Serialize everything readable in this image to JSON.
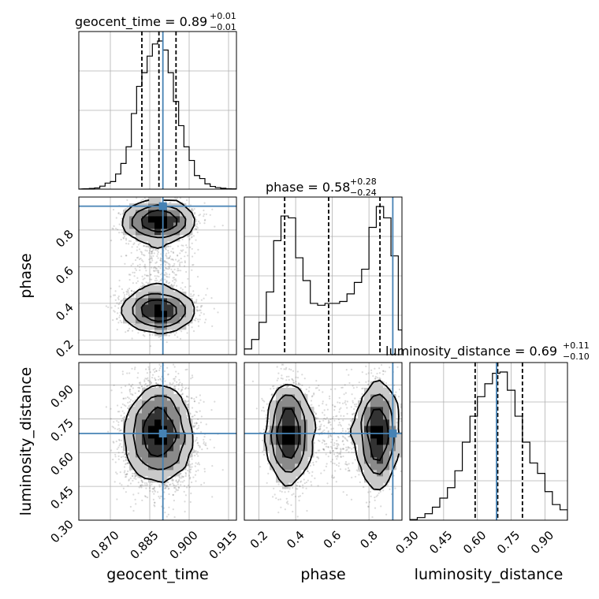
{
  "chart_data": {
    "type": "corner",
    "parameters": [
      "geocent_time",
      "phase",
      "luminosity_distance"
    ],
    "truths": {
      "geocent_time": 0.89,
      "phase": 0.93,
      "luminosity_distance": 0.685
    },
    "truth_color": "#4682b4",
    "line_color": "#000000",
    "grid": true,
    "ranges": {
      "geocent_time": [
        0.858,
        0.918
      ],
      "phase": [
        0.12,
        0.98
      ],
      "luminosity_distance": [
        0.3,
        1.0
      ]
    },
    "ticks": {
      "geocent_time": {
        "values": [
          0.87,
          0.885,
          0.9,
          0.915
        ],
        "labels": [
          "0.870",
          "0.885",
          "0.900",
          "0.915"
        ]
      },
      "phase": {
        "values": [
          0.2,
          0.4,
          0.6,
          0.8
        ],
        "labels": [
          "0.2",
          "0.4",
          "0.6",
          "0.8"
        ]
      },
      "luminosity_distance": {
        "values": [
          0.3,
          0.45,
          0.6,
          0.75,
          0.9
        ],
        "labels": [
          "0.30",
          "0.45",
          "0.60",
          "0.75",
          "0.90"
        ]
      }
    },
    "titles": [
      {
        "param": "geocent_time",
        "text": "geocent_time = 0.89",
        "sup": "+0.01",
        "sub": "−0.01"
      },
      {
        "param": "phase",
        "text": "phase = 0.58",
        "sup": "+0.28",
        "sub": "−0.24"
      },
      {
        "param": "luminosity_distance",
        "text": "luminosity_distance = 0.69",
        "sup": "+0.11",
        "sub": "−0.10"
      }
    ],
    "quantiles": {
      "geocent_time": [
        0.882,
        0.8885,
        0.895
      ],
      "phase": [
        0.34,
        0.58,
        0.86
      ],
      "luminosity_distance": [
        0.59,
        0.69,
        0.8
      ]
    },
    "histograms": {
      "geocent_time": {
        "edges": [
          0.86,
          0.862,
          0.864,
          0.866,
          0.868,
          0.87,
          0.872,
          0.874,
          0.876,
          0.878,
          0.88,
          0.882,
          0.884,
          0.886,
          0.888,
          0.89,
          0.892,
          0.894,
          0.896,
          0.898,
          0.9,
          0.902,
          0.904,
          0.906,
          0.908,
          0.91,
          0.912,
          0.914,
          0.916,
          0.918
        ],
        "counts": [
          0.3,
          0.5,
          0.8,
          2,
          4,
          5,
          10,
          17,
          28,
          50,
          68,
          77,
          88,
          96,
          98,
          92,
          77,
          58,
          42,
          28,
          19,
          9,
          7,
          3.5,
          1.8,
          1,
          0.6,
          0.3,
          0.2
        ]
      },
      "phase": {
        "edges": [
          0.12,
          0.16,
          0.2,
          0.24,
          0.28,
          0.32,
          0.36,
          0.4,
          0.44,
          0.48,
          0.52,
          0.56,
          0.6,
          0.64,
          0.68,
          0.72,
          0.76,
          0.8,
          0.84,
          0.88,
          0.92,
          0.96,
          0.98
        ],
        "counts": [
          3,
          8,
          17,
          33,
          60,
          73,
          72,
          51,
          39,
          27,
          26,
          27,
          27,
          28,
          32,
          38,
          45,
          67,
          78,
          72,
          52,
          13
        ]
      },
      "luminosity_distance": {
        "edges": [
          0.3,
          0.333,
          0.367,
          0.4,
          0.433,
          0.467,
          0.5,
          0.533,
          0.567,
          0.6,
          0.633,
          0.667,
          0.7,
          0.733,
          0.767,
          0.8,
          0.833,
          0.867,
          0.9,
          0.933,
          0.967,
          1.0
        ],
        "counts": [
          0.5,
          2,
          5,
          10,
          17,
          25,
          38,
          60,
          80,
          95,
          105,
          113,
          114,
          100,
          80,
          60,
          44,
          36,
          22,
          12,
          8
        ]
      }
    },
    "posterior_modes": {
      "phase_lobes": [
        {
          "phase": 0.36,
          "weight": 0.5
        },
        {
          "phase": 0.85,
          "weight": 0.5
        }
      ],
      "geocent_time_center": 0.8885,
      "luminosity_distance_center": 0.685
    }
  }
}
